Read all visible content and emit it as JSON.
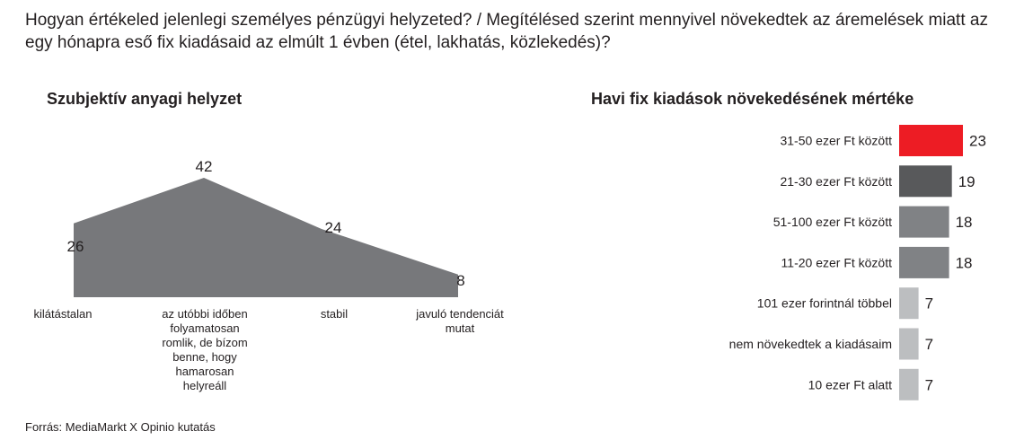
{
  "question": "Hogyan értékeled jelenlegi személyes pénzügyi helyzeted? / Megítélésed szerint mennyivel növekedtek az áremelések miatt az egy hónapra eső fix kiadásaid az elmúlt 1 évben (étel, lakhatás, közlekedés)?",
  "source": "Forrás: MediaMarkt X Opinio kutatás",
  "chart_data": [
    {
      "type": "area",
      "title": "Szubjektív anyagi helyzet",
      "categories": [
        "kilátástalan",
        "az utóbbi időben folyamatosan romlik, de bízom benne, hogy hamarosan helyreáll",
        "stabil",
        "javuló tendenciát mutat"
      ],
      "category_lines": [
        [
          "kilátástalan"
        ],
        [
          "az utóbbi időben",
          "folyamatosan",
          "romlik, de bízom",
          "benne, hogy",
          "hamarosan",
          "helyreáll"
        ],
        [
          "stabil"
        ],
        [
          "javuló tendenciát",
          "mutat"
        ]
      ],
      "values": [
        26,
        42,
        24,
        8
      ],
      "color": "#77787b",
      "grid": false
    },
    {
      "type": "bar",
      "orientation": "horizontal",
      "title": "Havi fix kiadások növekedésének mértéke",
      "categories": [
        "31-50 ezer Ft között",
        "21-30 ezer Ft között",
        "51-100 ezer Ft között",
        "11-20 ezer Ft között",
        "101 ezer forintnál többel",
        "nem növekedtek a kiadásaim",
        "10 ezer Ft alatt"
      ],
      "values": [
        23,
        19,
        18,
        18,
        7,
        7,
        7
      ],
      "colors": [
        "#ed1c24",
        "#58595b",
        "#808285",
        "#808285",
        "#bcbec0",
        "#bcbec0",
        "#bcbec0"
      ],
      "grid": false
    }
  ]
}
